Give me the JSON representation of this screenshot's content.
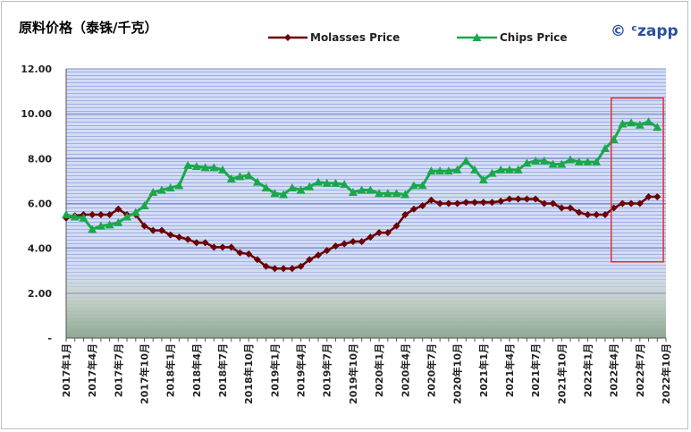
{
  "chart_data": {
    "type": "line",
    "title": "原料价格（泰铢/千克）",
    "brand": "© ᶜzapp",
    "ylim": [
      0,
      12
    ],
    "y_ticks": [
      {
        "value": 0,
        "label": "-"
      },
      {
        "value": 2,
        "label": "2.00"
      },
      {
        "value": 4,
        "label": "4.00"
      },
      {
        "value": 6,
        "label": "6.00"
      },
      {
        "value": 8,
        "label": "8.00"
      },
      {
        "value": 10,
        "label": "10.00"
      },
      {
        "value": 12,
        "label": "12.00"
      }
    ],
    "x_range": [
      "2017-01",
      "2022-10"
    ],
    "x_ticks": [
      "2017年1月",
      "2017年4月",
      "2017年7月",
      "2017年10月",
      "2018年1月",
      "2018年4月",
      "2018年7月",
      "2018年10月",
      "2019年1月",
      "2019年4月",
      "2019年7月",
      "2019年10月",
      "2020年1月",
      "2020年4月",
      "2020年7月",
      "2020年10月",
      "2021年1月",
      "2021年4月",
      "2021年7月",
      "2021年10月",
      "2022年1月",
      "2022年4月",
      "2022年7月",
      "2022年10月"
    ],
    "legend_position": "top-center",
    "highlight_box": {
      "x_start": "2022-04",
      "x_end": "2022-10",
      "y_min": 3.4,
      "y_max": 10.7,
      "color": "#e03030"
    },
    "series": [
      {
        "name": "Molasses Price",
        "color": "#6b0000",
        "marker": "diamond",
        "x": [
          "2017-01",
          "2017-02",
          "2017-03",
          "2017-04",
          "2017-05",
          "2017-06",
          "2017-07",
          "2017-08",
          "2017-09",
          "2017-10",
          "2017-11",
          "2017-12",
          "2018-01",
          "2018-02",
          "2018-03",
          "2018-04",
          "2018-05",
          "2018-06",
          "2018-07",
          "2018-08",
          "2018-09",
          "2018-10",
          "2018-11",
          "2018-12",
          "2019-01",
          "2019-02",
          "2019-03",
          "2019-04",
          "2019-05",
          "2019-06",
          "2019-07",
          "2019-08",
          "2019-09",
          "2019-10",
          "2019-11",
          "2019-12",
          "2020-01",
          "2020-02",
          "2020-03",
          "2020-04",
          "2020-05",
          "2020-06",
          "2020-07",
          "2020-08",
          "2020-09",
          "2020-10",
          "2020-11",
          "2020-12",
          "2021-01",
          "2021-02",
          "2021-03",
          "2021-04",
          "2021-05",
          "2021-06",
          "2021-07",
          "2021-08",
          "2021-09",
          "2021-10",
          "2021-11",
          "2021-12",
          "2022-01",
          "2022-02",
          "2022-03",
          "2022-04",
          "2022-05",
          "2022-06",
          "2022-07",
          "2022-08",
          "2022-09"
        ],
        "values": [
          5.35,
          5.45,
          5.5,
          5.5,
          5.5,
          5.5,
          5.75,
          5.5,
          5.5,
          5.0,
          4.8,
          4.8,
          4.6,
          4.5,
          4.4,
          4.25,
          4.25,
          4.05,
          4.05,
          4.05,
          3.8,
          3.75,
          3.5,
          3.2,
          3.1,
          3.1,
          3.1,
          3.2,
          3.5,
          3.7,
          3.9,
          4.1,
          4.2,
          4.3,
          4.3,
          4.5,
          4.7,
          4.7,
          5.0,
          5.5,
          5.75,
          5.9,
          6.15,
          6.0,
          6.0,
          6.0,
          6.05,
          6.05,
          6.05,
          6.05,
          6.1,
          6.2,
          6.2,
          6.2,
          6.2,
          6.0,
          6.0,
          5.8,
          5.8,
          5.6,
          5.5,
          5.5,
          5.5,
          5.8,
          6.0,
          6.0,
          6.0,
          6.3,
          6.3
        ]
      },
      {
        "name": "Chips Price",
        "color": "#1aa84a",
        "marker": "triangle",
        "x": [
          "2017-01",
          "2017-02",
          "2017-03",
          "2017-04",
          "2017-05",
          "2017-06",
          "2017-07",
          "2017-08",
          "2017-09",
          "2017-10",
          "2017-11",
          "2017-12",
          "2018-01",
          "2018-02",
          "2018-03",
          "2018-04",
          "2018-05",
          "2018-06",
          "2018-07",
          "2018-08",
          "2018-09",
          "2018-10",
          "2018-11",
          "2018-12",
          "2019-01",
          "2019-02",
          "2019-03",
          "2019-04",
          "2019-05",
          "2019-06",
          "2019-07",
          "2019-08",
          "2019-09",
          "2019-10",
          "2019-11",
          "2019-12",
          "2020-01",
          "2020-02",
          "2020-03",
          "2020-04",
          "2020-05",
          "2020-06",
          "2020-07",
          "2020-08",
          "2020-09",
          "2020-10",
          "2020-11",
          "2020-12",
          "2021-01",
          "2021-02",
          "2021-03",
          "2021-04",
          "2021-05",
          "2021-06",
          "2021-07",
          "2021-08",
          "2021-09",
          "2021-10",
          "2021-11",
          "2021-12",
          "2022-01",
          "2022-02",
          "2022-03",
          "2022-04",
          "2022-05",
          "2022-06",
          "2022-07",
          "2022-08",
          "2022-09"
        ],
        "values": [
          5.5,
          5.4,
          5.35,
          4.85,
          5.0,
          5.05,
          5.15,
          5.4,
          5.6,
          5.9,
          6.5,
          6.6,
          6.7,
          6.8,
          7.7,
          7.65,
          7.6,
          7.6,
          7.5,
          7.1,
          7.2,
          7.25,
          6.95,
          6.7,
          6.45,
          6.4,
          6.7,
          6.6,
          6.75,
          6.95,
          6.9,
          6.9,
          6.85,
          6.5,
          6.6,
          6.6,
          6.45,
          6.45,
          6.45,
          6.4,
          6.8,
          6.8,
          7.45,
          7.45,
          7.45,
          7.5,
          7.9,
          7.5,
          7.05,
          7.35,
          7.5,
          7.5,
          7.5,
          7.8,
          7.9,
          7.9,
          7.75,
          7.75,
          7.95,
          7.85,
          7.85,
          7.85,
          8.45,
          8.85,
          9.55,
          9.6,
          9.5,
          9.65,
          9.4
        ]
      }
    ]
  }
}
